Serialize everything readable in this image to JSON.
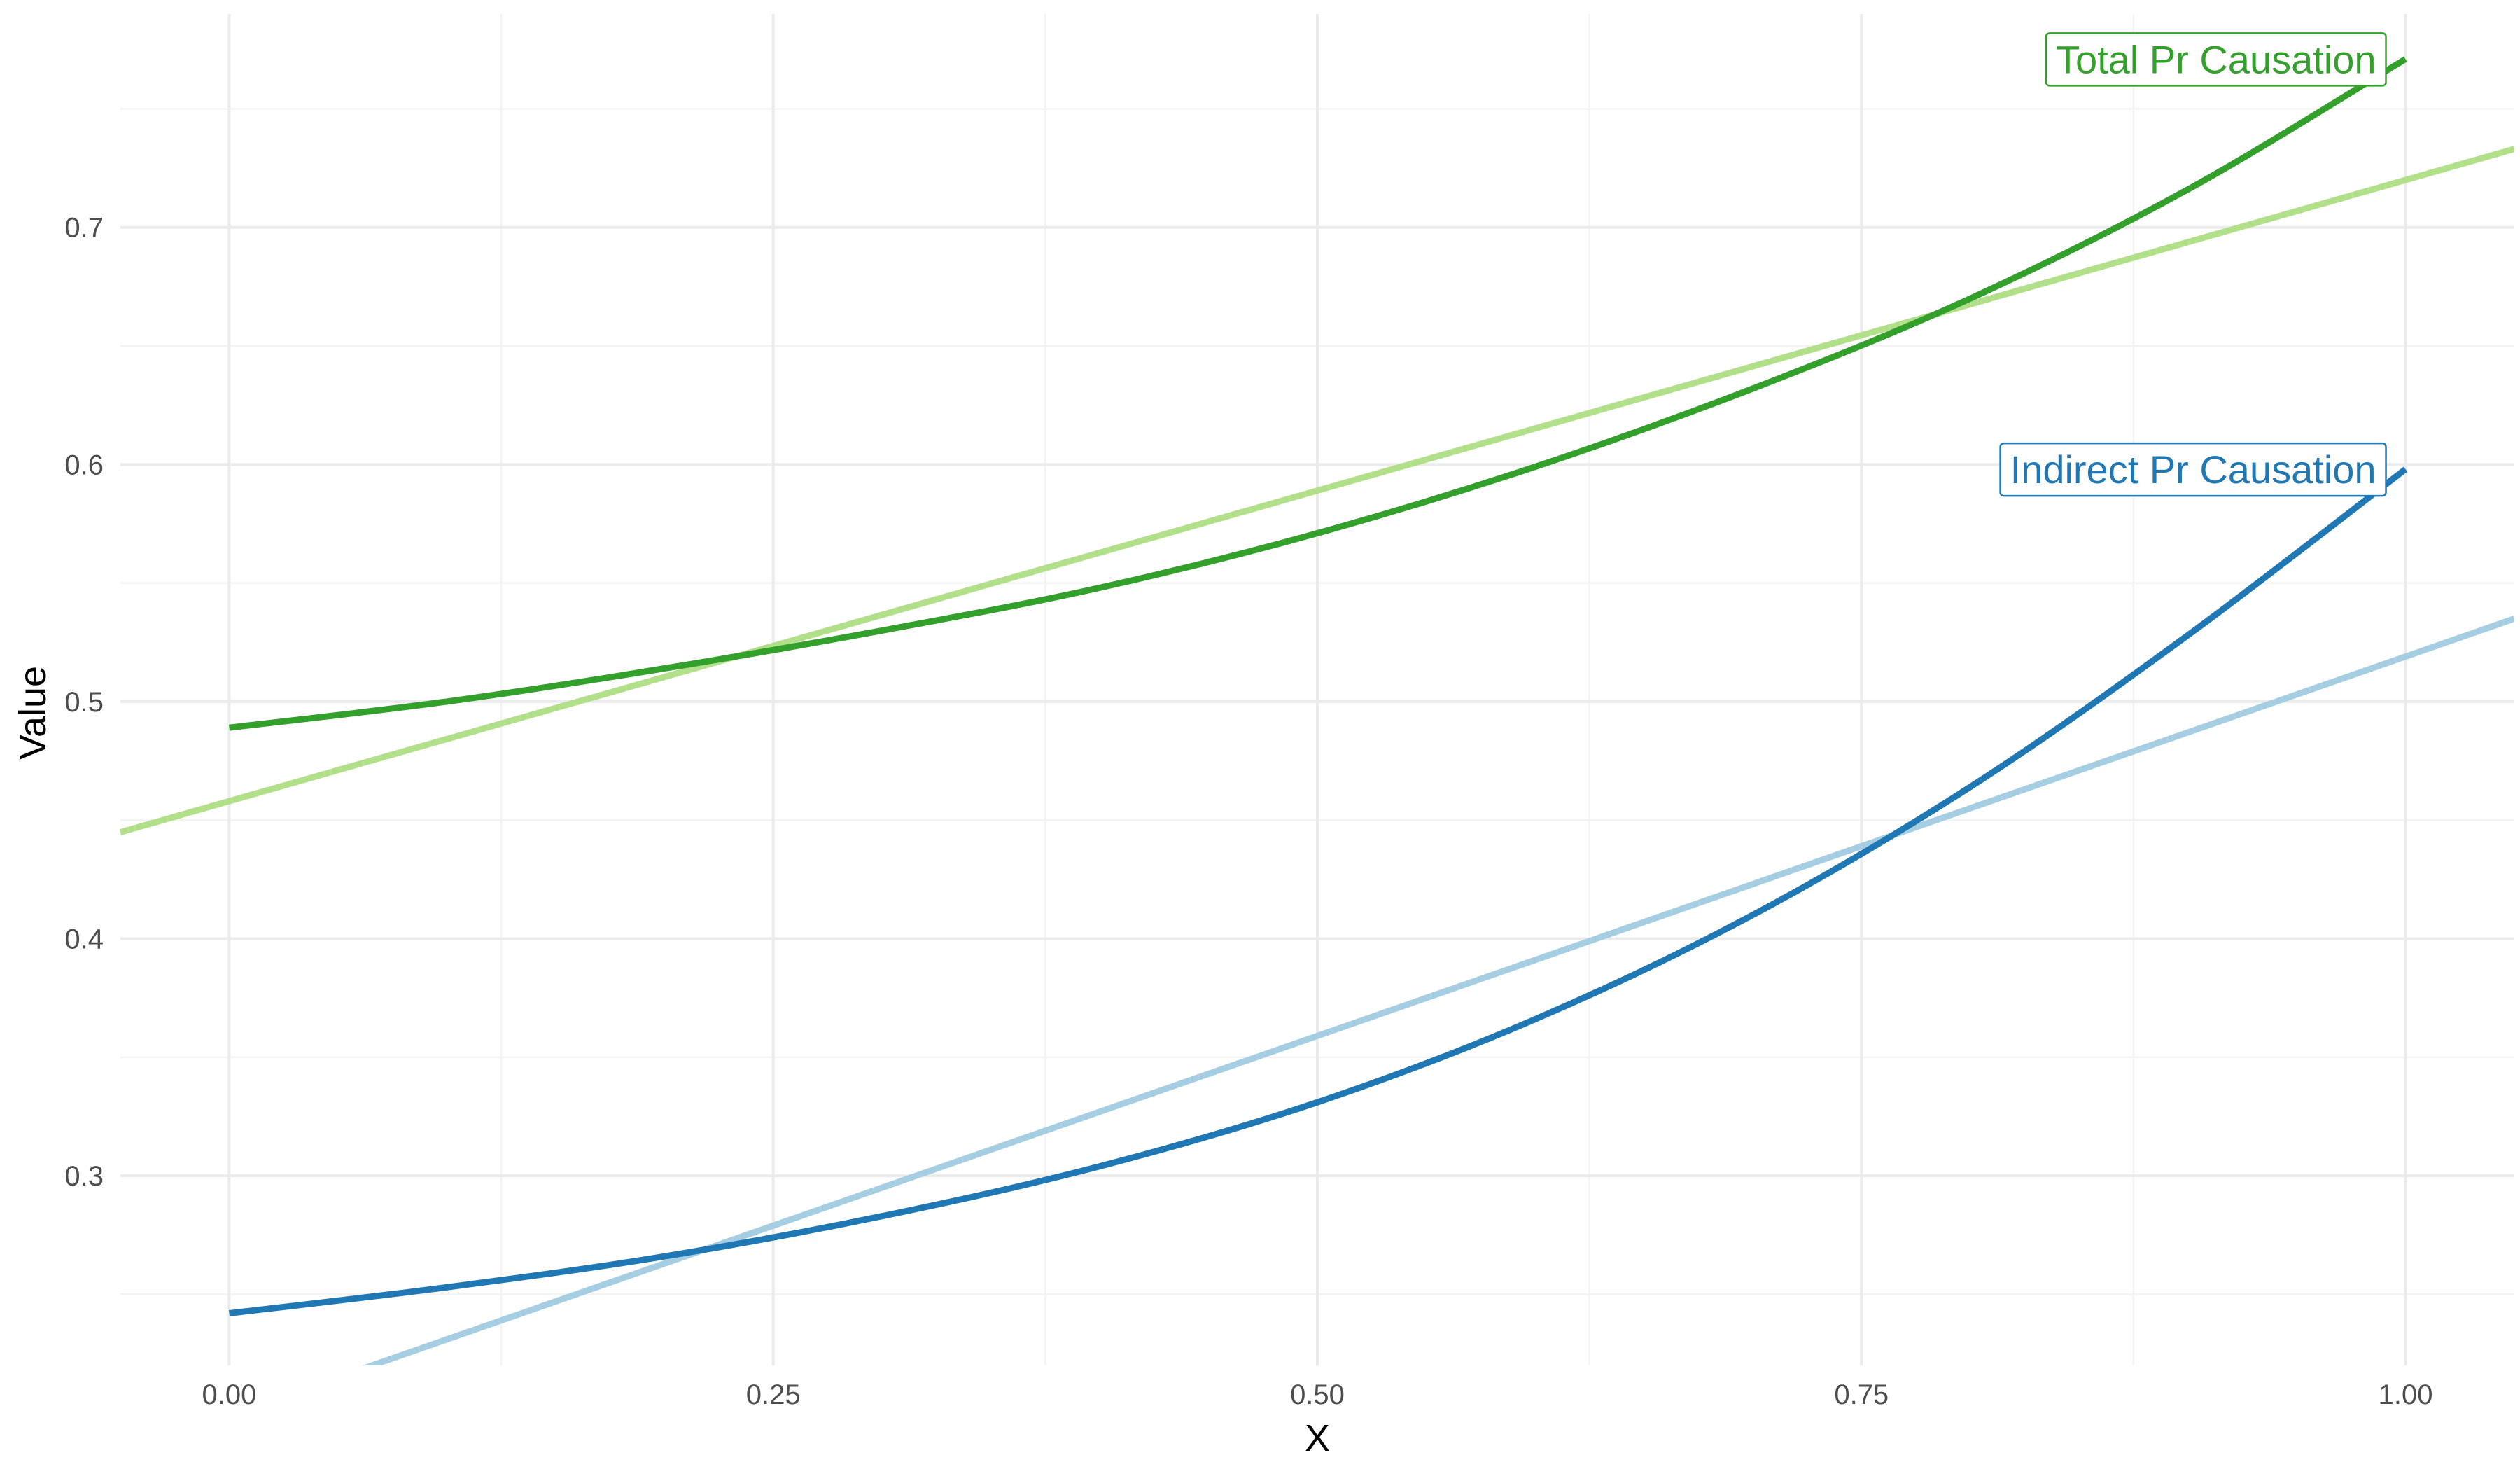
{
  "chart_data": {
    "type": "line",
    "title": "",
    "xlabel": "X",
    "ylabel": "Value",
    "xlim": [
      -0.05,
      1.05
    ],
    "ylim": [
      0.22,
      0.79
    ],
    "x_ticks": [
      0.0,
      0.25,
      0.5,
      0.75,
      1.0
    ],
    "x_tick_labels": [
      "0.00",
      "0.25",
      "0.50",
      "0.75",
      "1.00"
    ],
    "y_ticks": [
      0.3,
      0.4,
      0.5,
      0.6,
      0.7
    ],
    "y_tick_labels": [
      "0.3",
      "0.4",
      "0.5",
      "0.6",
      "0.7"
    ],
    "grid": true,
    "legend": "none",
    "x": [
      0.0,
      0.1,
      0.2,
      0.3,
      0.4,
      0.5,
      0.6,
      0.7,
      0.8,
      0.9,
      1.0
    ],
    "series": [
      {
        "name": "Total Pr Causation",
        "color": "#33a02c",
        "style": "curve",
        "label_at_end": true,
        "values": [
          0.489,
          0.5,
          0.514,
          0.53,
          0.548,
          0.571,
          0.599,
          0.632,
          0.67,
          0.716,
          0.771
        ]
      },
      {
        "color": "#b2df8a",
        "style": "line",
        "values": [
          0.458,
          0.484,
          0.51,
          0.536,
          0.562,
          0.588,
          0.615,
          0.641,
          0.667,
          0.693,
          0.72
        ]
      },
      {
        "name": "Indirect Pr Causation",
        "color": "#1f78b4",
        "style": "curve",
        "label_at_end": true,
        "values": [
          0.242,
          0.253,
          0.266,
          0.283,
          0.304,
          0.331,
          0.366,
          0.41,
          0.464,
          0.528,
          0.598
        ]
      },
      {
        "color": "#a6cee3",
        "style": "line",
        "values": [
          0.199,
          0.231,
          0.263,
          0.295,
          0.327,
          0.359,
          0.391,
          0.423,
          0.455,
          0.487,
          0.519
        ]
      }
    ]
  }
}
